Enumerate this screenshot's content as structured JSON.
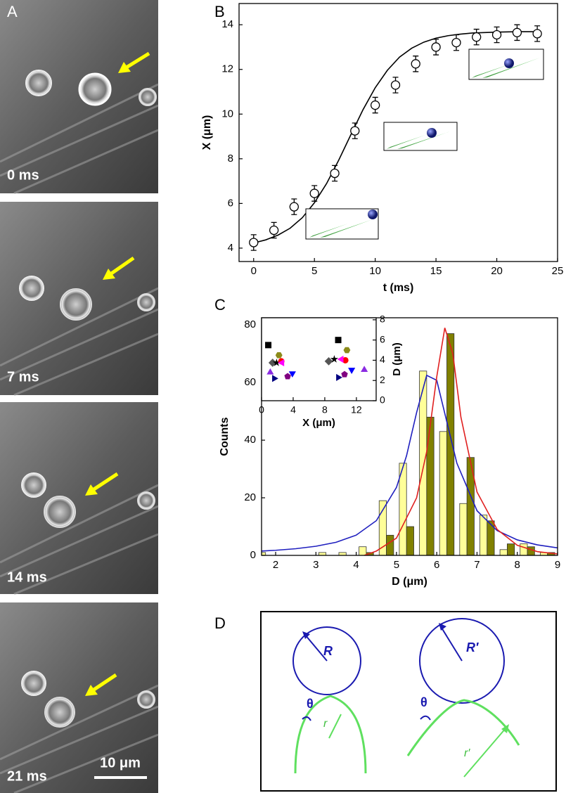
{
  "panels": {
    "A": {
      "label": "A",
      "frames": [
        "0 ms",
        "7 ms",
        "14 ms",
        "21 ms"
      ],
      "scale_bar": "10 μm"
    }
  },
  "chart_data": [
    {
      "type": "scatter",
      "panel": "B",
      "xlabel": "t (ms)",
      "ylabel": "X (μm)",
      "x": [
        0,
        1.67,
        3.33,
        5,
        6.67,
        8.33,
        10,
        11.67,
        13.33,
        15,
        16.67,
        18.33,
        20,
        21.67,
        23.33
      ],
      "values": [
        4.25,
        4.8,
        5.85,
        6.45,
        7.35,
        9.25,
        10.4,
        11.3,
        12.25,
        13.0,
        13.2,
        13.45,
        13.55,
        13.65,
        13.6
      ],
      "errors": [
        0.35,
        0.35,
        0.35,
        0.35,
        0.35,
        0.35,
        0.35,
        0.35,
        0.35,
        0.35,
        0.35,
        0.35,
        0.35,
        0.35,
        0.35
      ],
      "marker_color": "#000000",
      "fit": {
        "color": "#000000",
        "x": [
          0,
          1,
          2,
          3,
          4,
          5,
          6,
          7,
          8,
          9,
          10,
          11,
          12,
          13,
          14,
          15,
          16,
          17,
          18,
          19,
          20,
          21,
          22,
          23
        ],
        "values": [
          4.23,
          4.37,
          4.58,
          4.89,
          5.36,
          6.03,
          6.89,
          7.94,
          9.08,
          10.2,
          11.18,
          11.96,
          12.55,
          12.95,
          13.22,
          13.4,
          13.51,
          13.58,
          13.63,
          13.65,
          13.67,
          13.68,
          13.69,
          13.69
        ]
      },
      "xlim": [
        -1.2,
        25
      ],
      "ylim": [
        3.4,
        14.95
      ],
      "xticks": [
        0,
        5,
        10,
        15,
        20,
        25
      ],
      "yticks": [
        4,
        6,
        8,
        10,
        12,
        14
      ]
    },
    {
      "type": "histogram",
      "panel": "C",
      "xlabel": "D (μm)",
      "ylabel": "Counts",
      "bins": [
        1.5,
        2.0,
        2.5,
        3.0,
        3.5,
        4.0,
        4.5,
        5.0,
        5.5,
        6.0,
        6.5,
        7.0,
        7.5,
        8.0,
        8.5,
        9.0
      ],
      "series": [
        {
          "color": "#ffff99",
          "values": [
            1,
            0,
            0,
            1,
            1,
            3,
            19,
            32,
            64,
            43,
            18,
            14,
            2,
            4,
            1
          ]
        },
        {
          "color": "#808000",
          "values": [
            0,
            0,
            0,
            0,
            0,
            1,
            7,
            10,
            48,
            77,
            34,
            12,
            4,
            3,
            1
          ]
        }
      ],
      "fits": [
        {
          "color": "#1f1fbf",
          "x": [
            1.5,
            2.0,
            2.5,
            3.0,
            3.5,
            4.0,
            4.5,
            5.0,
            5.25,
            5.5,
            5.75,
            6.0,
            6.25,
            6.5,
            7.0,
            7.5,
            8.0,
            8.5,
            9.0
          ],
          "values": [
            1.4,
            1.77,
            2.32,
            3.17,
            4.54,
            7.03,
            12.05,
            23.6,
            34.6,
            49.6,
            62.5,
            60.8,
            46.4,
            32.0,
            15.5,
            8.6,
            5.38,
            3.64,
            2.61
          ]
        },
        {
          "color": "#e02020",
          "x": [
            4.2,
            4.5,
            5.0,
            5.5,
            5.75,
            6.0,
            6.2,
            6.4,
            6.6,
            7.0,
            7.5,
            8.0,
            8.5,
            9.0
          ],
          "values": [
            0,
            1.5,
            6,
            20,
            36,
            62,
            79,
            70,
            48,
            22,
            9,
            3.5,
            1.3,
            0.5
          ]
        }
      ],
      "xlim": [
        1.65,
        9
      ],
      "ylim": [
        0,
        82.5
      ],
      "xticks": [
        2,
        3,
        4,
        5,
        6,
        7,
        8,
        9
      ],
      "yticks": [
        0,
        20,
        40,
        60,
        80
      ]
    },
    {
      "type": "scatter",
      "inset": true,
      "xlabel": "X (μm)",
      "ylabel": "D (μm)",
      "y_axis_side": "right",
      "series": [
        {
          "color": "#000000",
          "marker": "square",
          "x": [
            0.85,
            9.7
          ],
          "values": [
            5.5,
            6.0
          ]
        },
        {
          "color": "#8b8b1a",
          "marker": "hexagon",
          "x": [
            2.2,
            10.8
          ],
          "values": [
            4.5,
            5.0
          ]
        },
        {
          "color": "#555555",
          "marker": "diamond",
          "x": [
            1.4,
            8.5
          ],
          "values": [
            3.75,
            3.9
          ]
        },
        {
          "color": "#000000",
          "marker": "star",
          "x": [
            1.9,
            9.2
          ],
          "values": [
            3.75,
            4.1
          ]
        },
        {
          "color": "#ff0000",
          "marker": "circle",
          "x": [
            2.5,
            10.6
          ],
          "values": [
            3.9,
            4.0
          ]
        },
        {
          "color": "#ff00ff",
          "marker": "left-triangle",
          "x": [
            2.6,
            10.1
          ],
          "values": [
            3.75,
            4.1
          ]
        },
        {
          "color": "#8a2be2",
          "marker": "up-triangle",
          "x": [
            1.1,
            13.0
          ],
          "values": [
            2.8,
            3.05
          ]
        },
        {
          "color": "#000080",
          "marker": "right-triangle",
          "x": [
            1.6,
            9.7
          ],
          "values": [
            2.2,
            2.3
          ]
        },
        {
          "color": "#0000ff",
          "marker": "down-triangle",
          "x": [
            3.9,
            11.4
          ],
          "values": [
            2.7,
            3.05
          ]
        },
        {
          "color": "#800080",
          "marker": "pentagon",
          "x": [
            3.3,
            10.5
          ],
          "values": [
            2.4,
            2.6
          ]
        }
      ],
      "xlim": [
        0,
        14.5
      ],
      "ylim": [
        0,
        8.2
      ],
      "xticks": [
        0,
        4,
        8,
        12
      ],
      "yticks": [
        0,
        2,
        4,
        6,
        8
      ]
    }
  ],
  "diagram": {
    "label": "D",
    "left": {
      "R": "R",
      "theta": "θ",
      "r": "r"
    },
    "right": {
      "R": "R′",
      "theta": "θ",
      "r": "r′"
    }
  }
}
